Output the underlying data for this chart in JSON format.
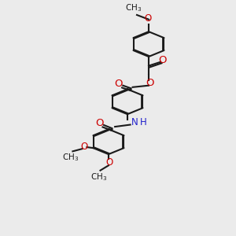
{
  "background_color": "#ebebeb",
  "bond_color": "#1a1a1a",
  "oxygen_color": "#cc0000",
  "nitrogen_color": "#2222cc",
  "line_width": 1.5,
  "font_size_atom": 8.5,
  "font_size_small": 7.5,
  "xlim": [
    0,
    10
  ],
  "ylim": [
    0,
    14
  ],
  "figsize": [
    3.0,
    3.0
  ],
  "dpi": 100
}
